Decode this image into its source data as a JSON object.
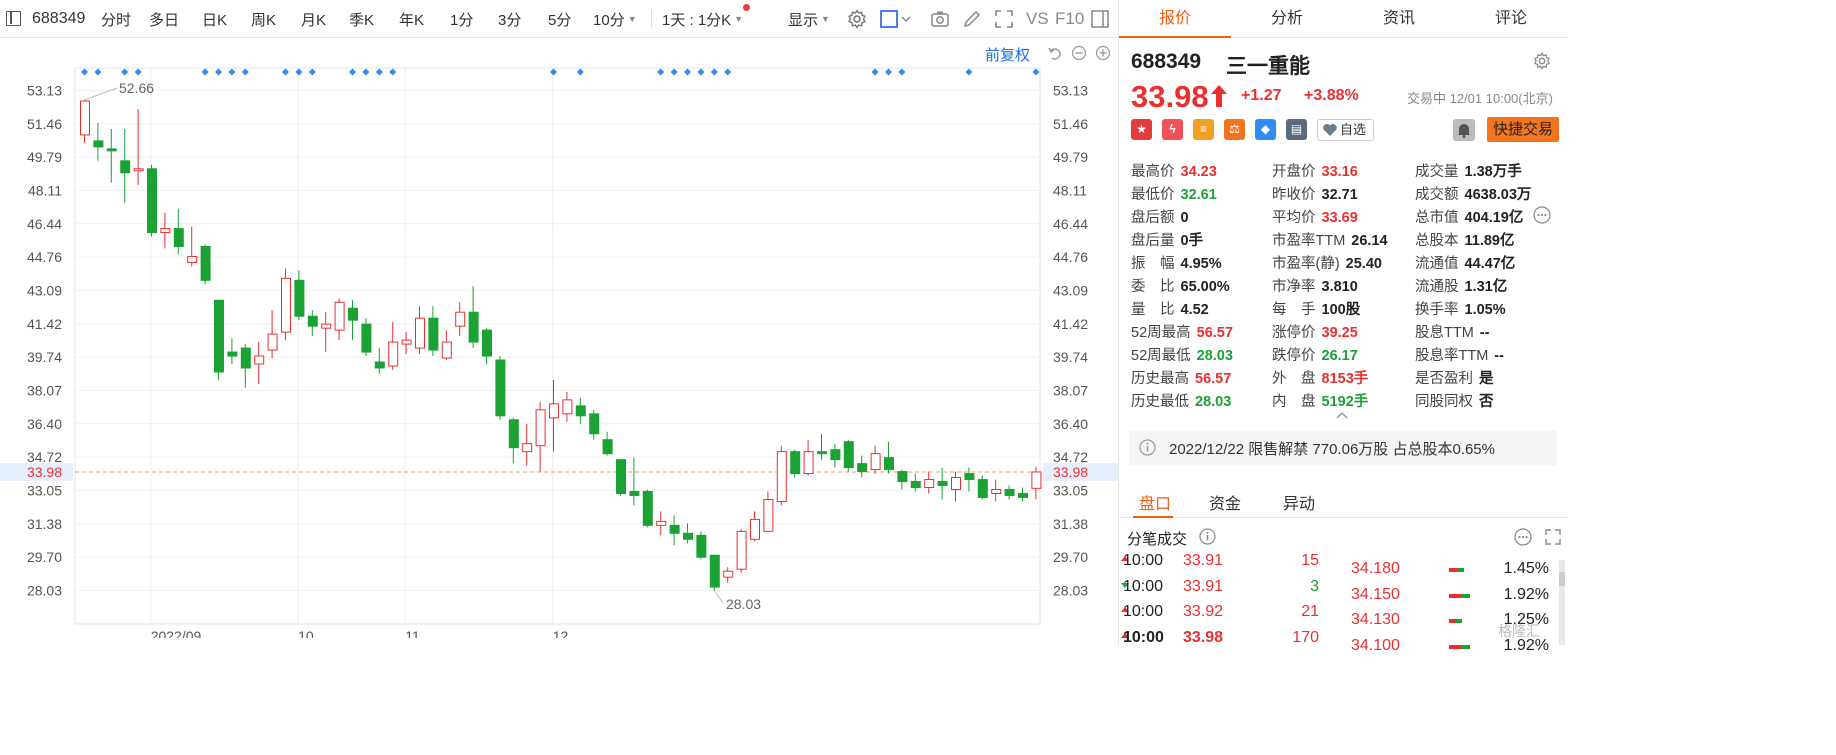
{
  "toolbar": {
    "code": "688349",
    "periods": [
      "分时",
      "多日",
      "日K",
      "周K",
      "月K",
      "季K",
      "年K",
      "1分",
      "3分",
      "5分",
      "10分"
    ],
    "active_period": "日K",
    "intraday_label": "1天 : 1分K",
    "display_label": "显示",
    "vs_label": "VS",
    "f10_label": "F10"
  },
  "chart": {
    "adjust_label": "前复权",
    "current_price_tag": "33.98",
    "hi_annotation": "52.66",
    "lo_annotation": "28.03",
    "colors": {
      "up": "#e93030",
      "down": "#1ba235",
      "price_line": "#f5a04a",
      "marker": "#2f8cf2"
    }
  },
  "chart_data": {
    "type": "candlestick",
    "y_ticks": [
      "53.13",
      "51.46",
      "49.79",
      "48.11",
      "46.44",
      "44.76",
      "43.09",
      "41.42",
      "39.74",
      "38.07",
      "36.40",
      "34.72",
      "33.05",
      "31.38",
      "29.70",
      "28.03"
    ],
    "ylim": [
      27.2,
      54.0
    ],
    "x_labels": [
      {
        "label": "2022/09",
        "index": 6
      },
      {
        "label": "10",
        "index": 17
      },
      {
        "label": "11",
        "index": 25
      },
      {
        "label": "12",
        "index": 36
      }
    ],
    "candles": [
      {
        "o": 50.9,
        "c": 52.6,
        "h": 52.66,
        "l": 50.5
      },
      {
        "o": 50.6,
        "c": 50.3,
        "h": 51.5,
        "l": 49.6
      },
      {
        "o": 50.2,
        "c": 50.1,
        "h": 51.2,
        "l": 48.5
      },
      {
        "o": 49.6,
        "c": 49.0,
        "h": 51.2,
        "l": 47.5
      },
      {
        "o": 49.1,
        "c": 49.2,
        "h": 52.2,
        "l": 48.4
      },
      {
        "o": 49.2,
        "c": 46.0,
        "h": 49.4,
        "l": 45.8
      },
      {
        "o": 46.0,
        "c": 46.2,
        "h": 47.0,
        "l": 45.2
      },
      {
        "o": 46.2,
        "c": 45.3,
        "h": 47.2,
        "l": 44.9
      },
      {
        "o": 44.5,
        "c": 44.8,
        "h": 46.3,
        "l": 44.3
      },
      {
        "o": 45.3,
        "c": 43.6,
        "h": 45.4,
        "l": 43.4
      },
      {
        "o": 42.6,
        "c": 39.0,
        "h": 42.6,
        "l": 38.6
      },
      {
        "o": 40.0,
        "c": 39.8,
        "h": 40.7,
        "l": 39.4
      },
      {
        "o": 40.2,
        "c": 39.2,
        "h": 40.4,
        "l": 38.2
      },
      {
        "o": 39.4,
        "c": 39.8,
        "h": 40.5,
        "l": 38.4
      },
      {
        "o": 40.1,
        "c": 40.9,
        "h": 42.1,
        "l": 39.7
      },
      {
        "o": 41.0,
        "c": 43.7,
        "h": 44.2,
        "l": 40.6
      },
      {
        "o": 43.6,
        "c": 41.8,
        "h": 44.1,
        "l": 41.6
      },
      {
        "o": 41.8,
        "c": 41.3,
        "h": 42.1,
        "l": 40.8
      },
      {
        "o": 41.2,
        "c": 41.4,
        "h": 42.0,
        "l": 40.0
      },
      {
        "o": 41.1,
        "c": 42.5,
        "h": 42.7,
        "l": 40.6
      },
      {
        "o": 42.2,
        "c": 41.6,
        "h": 42.6,
        "l": 40.6
      },
      {
        "o": 41.4,
        "c": 40.0,
        "h": 41.7,
        "l": 39.8
      },
      {
        "o": 39.5,
        "c": 39.2,
        "h": 40.2,
        "l": 38.9
      },
      {
        "o": 39.3,
        "c": 40.5,
        "h": 41.5,
        "l": 39.1
      },
      {
        "o": 40.4,
        "c": 40.6,
        "h": 41.0,
        "l": 39.9
      },
      {
        "o": 40.2,
        "c": 41.7,
        "h": 42.3,
        "l": 39.9
      },
      {
        "o": 41.7,
        "c": 40.1,
        "h": 42.3,
        "l": 39.8
      },
      {
        "o": 39.7,
        "c": 40.5,
        "h": 41.1,
        "l": 39.6
      },
      {
        "o": 41.3,
        "c": 42.0,
        "h": 42.5,
        "l": 40.8
      },
      {
        "o": 42.0,
        "c": 40.5,
        "h": 43.3,
        "l": 40.2
      },
      {
        "o": 41.1,
        "c": 39.8,
        "h": 41.2,
        "l": 39.4
      },
      {
        "o": 39.6,
        "c": 36.8,
        "h": 39.8,
        "l": 36.6
      },
      {
        "o": 36.6,
        "c": 35.2,
        "h": 36.7,
        "l": 34.4
      },
      {
        "o": 35.0,
        "c": 35.4,
        "h": 36.4,
        "l": 34.3
      },
      {
        "o": 35.3,
        "c": 37.1,
        "h": 37.5,
        "l": 34.0
      },
      {
        "o": 36.7,
        "c": 37.4,
        "h": 38.6,
        "l": 35.0
      },
      {
        "o": 36.9,
        "c": 37.6,
        "h": 38.0,
        "l": 36.5
      },
      {
        "o": 37.3,
        "c": 36.8,
        "h": 37.7,
        "l": 36.4
      },
      {
        "o": 36.9,
        "c": 35.9,
        "h": 37.1,
        "l": 35.6
      },
      {
        "o": 35.6,
        "c": 34.9,
        "h": 36.0,
        "l": 34.8
      },
      {
        "o": 34.6,
        "c": 32.9,
        "h": 34.6,
        "l": 32.8
      },
      {
        "o": 33.0,
        "c": 32.8,
        "h": 34.7,
        "l": 32.3
      },
      {
        "o": 33.0,
        "c": 31.3,
        "h": 33.1,
        "l": 31.2
      },
      {
        "o": 31.3,
        "c": 31.5,
        "h": 32.0,
        "l": 30.8
      },
      {
        "o": 31.3,
        "c": 30.9,
        "h": 31.8,
        "l": 30.3
      },
      {
        "o": 30.9,
        "c": 30.6,
        "h": 31.4,
        "l": 30.4
      },
      {
        "o": 30.8,
        "c": 29.7,
        "h": 31.0,
        "l": 29.6
      },
      {
        "o": 29.8,
        "c": 28.2,
        "h": 29.8,
        "l": 28.03
      },
      {
        "o": 28.7,
        "c": 29.0,
        "h": 29.2,
        "l": 28.4
      },
      {
        "o": 29.1,
        "c": 31.0,
        "h": 31.1,
        "l": 28.9
      },
      {
        "o": 30.6,
        "c": 31.6,
        "h": 32.0,
        "l": 30.5
      },
      {
        "o": 31.0,
        "c": 32.6,
        "h": 33.0,
        "l": 31.0
      },
      {
        "o": 32.5,
        "c": 35.0,
        "h": 35.3,
        "l": 32.3
      },
      {
        "o": 35.0,
        "c": 33.9,
        "h": 35.1,
        "l": 33.7
      },
      {
        "o": 33.9,
        "c": 35.0,
        "h": 35.6,
        "l": 33.8
      },
      {
        "o": 35.0,
        "c": 34.9,
        "h": 35.9,
        "l": 34.6
      },
      {
        "o": 35.1,
        "c": 34.6,
        "h": 35.4,
        "l": 34.2
      },
      {
        "o": 35.5,
        "c": 34.2,
        "h": 35.6,
        "l": 34.0
      },
      {
        "o": 34.4,
        "c": 34.0,
        "h": 34.8,
        "l": 33.7
      },
      {
        "o": 34.1,
        "c": 34.9,
        "h": 35.3,
        "l": 33.9
      },
      {
        "o": 34.7,
        "c": 34.1,
        "h": 35.5,
        "l": 33.9
      },
      {
        "o": 34.0,
        "c": 33.5,
        "h": 34.1,
        "l": 33.1
      },
      {
        "o": 33.5,
        "c": 33.2,
        "h": 33.9,
        "l": 33.0
      },
      {
        "o": 33.2,
        "c": 33.6,
        "h": 34.0,
        "l": 32.9
      },
      {
        "o": 33.5,
        "c": 33.3,
        "h": 34.2,
        "l": 32.6
      },
      {
        "o": 33.1,
        "c": 33.7,
        "h": 34.0,
        "l": 32.5
      },
      {
        "o": 33.9,
        "c": 33.6,
        "h": 34.2,
        "l": 33.0
      },
      {
        "o": 33.6,
        "c": 32.7,
        "h": 33.8,
        "l": 32.6
      },
      {
        "o": 32.9,
        "c": 33.1,
        "h": 33.6,
        "l": 32.5
      },
      {
        "o": 33.1,
        "c": 32.8,
        "h": 33.3,
        "l": 32.6
      },
      {
        "o": 32.9,
        "c": 32.7,
        "h": 33.2,
        "l": 32.5
      },
      {
        "o": 33.16,
        "c": 33.98,
        "h": 34.23,
        "l": 32.61
      }
    ],
    "event_marker_indices": [
      0,
      1,
      3,
      4,
      9,
      10,
      11,
      12,
      15,
      16,
      17,
      20,
      21,
      22,
      23,
      35,
      37,
      43,
      44,
      45,
      46,
      47,
      48,
      59,
      60,
      61,
      66,
      71
    ]
  },
  "right_tabs": [
    "报价",
    "分析",
    "资讯",
    "评论"
  ],
  "stock": {
    "code": "688349",
    "name": "三一重能",
    "price": "33.98",
    "change": "+1.27",
    "change_pct": "+3.88%",
    "status": "交易中 12/01 10:00(北京)"
  },
  "actions": {
    "badges": [
      {
        "icon": "china-flag-icon",
        "color": "#e23c3c",
        "glyph": "★"
      },
      {
        "icon": "lightning-icon",
        "color": "#f2515b",
        "glyph": "ϟ"
      },
      {
        "icon": "coins-icon",
        "color": "#f2a023",
        "glyph": "≡"
      },
      {
        "icon": "balance-icon",
        "color": "#f2741d",
        "glyph": "⚖"
      },
      {
        "icon": "tag-icon",
        "color": "#2f8cf2",
        "glyph": "◆"
      },
      {
        "icon": "document-icon",
        "color": "#5b6b7d",
        "glyph": "▤"
      }
    ],
    "watchlist_label": "自选",
    "quick_trade_label": "快捷交易"
  },
  "quote": {
    "col1": [
      {
        "label": "最高价",
        "value": "34.23",
        "tone": "red"
      },
      {
        "label": "最低价",
        "value": "32.61",
        "tone": "green"
      },
      {
        "label": "盘后额",
        "value": "0",
        "tone": ""
      },
      {
        "label": "盘后量",
        "value": "0手",
        "tone": ""
      },
      {
        "label": "振　幅",
        "value": "4.95%",
        "tone": ""
      },
      {
        "label": "委　比",
        "value": "65.00%",
        "tone": ""
      },
      {
        "label": "量　比",
        "value": "4.52",
        "tone": ""
      },
      {
        "label": "52周最高",
        "value": "56.57",
        "tone": "red"
      },
      {
        "label": "52周最低",
        "value": "28.03",
        "tone": "green"
      },
      {
        "label": "历史最高",
        "value": "56.57",
        "tone": "red"
      },
      {
        "label": "历史最低",
        "value": "28.03",
        "tone": "green"
      }
    ],
    "col2": [
      {
        "label": "开盘价",
        "value": "33.16",
        "tone": "red"
      },
      {
        "label": "昨收价",
        "value": "32.71",
        "tone": ""
      },
      {
        "label": "平均价",
        "value": "33.69",
        "tone": "red"
      },
      {
        "label": "市盈率TTM",
        "value": "26.14",
        "tone": ""
      },
      {
        "label": "市盈率(静)",
        "value": "25.40",
        "tone": ""
      },
      {
        "label": "市净率",
        "value": "3.810",
        "tone": ""
      },
      {
        "label": "每　手",
        "value": "100股",
        "tone": ""
      },
      {
        "label": "涨停价",
        "value": "39.25",
        "tone": "red"
      },
      {
        "label": "跌停价",
        "value": "26.17",
        "tone": "green"
      },
      {
        "label": "外　盘",
        "value": "8153手",
        "tone": "red"
      },
      {
        "label": "内　盘",
        "value": "5192手",
        "tone": "green"
      }
    ],
    "col3": [
      {
        "label": "成交量",
        "value": "1.38万手",
        "tone": ""
      },
      {
        "label": "成交额",
        "value": "4638.03万",
        "tone": ""
      },
      {
        "label": "总市值",
        "value": "404.19亿",
        "tone": ""
      },
      {
        "label": "总股本",
        "value": "11.89亿",
        "tone": ""
      },
      {
        "label": "流通值",
        "value": "44.47亿",
        "tone": ""
      },
      {
        "label": "流通股",
        "value": "1.31亿",
        "tone": ""
      },
      {
        "label": "换手率",
        "value": "1.05%",
        "tone": ""
      },
      {
        "label": "股息TTM",
        "value": "--",
        "tone": ""
      },
      {
        "label": "股息率TTM",
        "value": "--",
        "tone": ""
      },
      {
        "label": "是否盈利",
        "value": "是",
        "tone": ""
      },
      {
        "label": "同股同权",
        "value": "否",
        "tone": ""
      }
    ]
  },
  "unlock_notice": "2022/12/22  限售解禁 770.06万股 占总股本0.65%",
  "bottom_tabs": [
    "盘口",
    "资金",
    "异动"
  ],
  "ticks": {
    "title": "分笔成交",
    "rows": [
      {
        "time": "10:00",
        "price": "33.91",
        "vol": "15",
        "dir": "up"
      },
      {
        "time": "10:00",
        "price": "33.91",
        "vol": "3",
        "dir": "down"
      },
      {
        "time": "10:00",
        "price": "33.92",
        "vol": "21",
        "dir": "up"
      },
      {
        "time": "10:00",
        "price": "33.98",
        "vol": "170",
        "dir": "up"
      }
    ]
  },
  "price_book": [
    {
      "price": "34.180",
      "pct": "1.45%",
      "bar": 0.3
    },
    {
      "price": "34.150",
      "pct": "1.92%",
      "bar": 0.42
    },
    {
      "price": "34.130",
      "pct": "1.25%",
      "bar": 0.26
    },
    {
      "price": "34.100",
      "pct": "1.92%",
      "bar": 0.42
    }
  ],
  "watermark": "格隆汇"
}
